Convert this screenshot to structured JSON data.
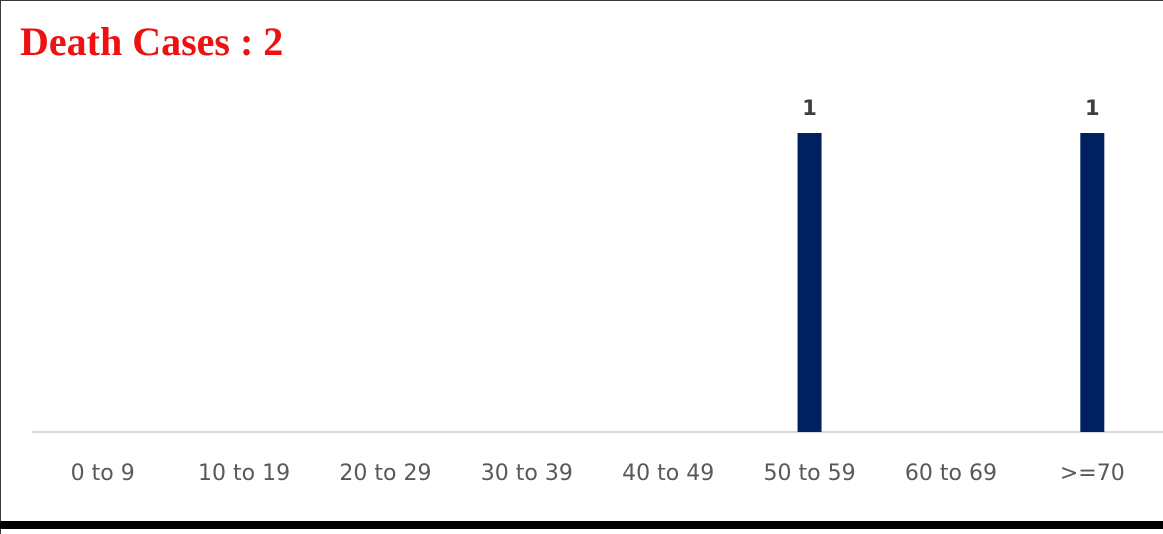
{
  "chart_data": {
    "type": "bar",
    "title": "Death Cases : 2",
    "categories": [
      "0 to 9",
      "10 to 19",
      "20 to 29",
      "30 to 39",
      "40 to 49",
      "50 to 59",
      "60 to 69",
      ">=70"
    ],
    "values": [
      0,
      0,
      0,
      0,
      0,
      1,
      0,
      1
    ],
    "data_labels": [
      "",
      "",
      "",
      "",
      "",
      "1",
      "",
      "1"
    ],
    "ylim": [
      0,
      1
    ],
    "xlabel": "",
    "ylabel": "",
    "grid": false,
    "legend": "none",
    "colors": {
      "bar": "#002060",
      "title": "#ee1111",
      "axis": "#d9d9d9",
      "tick_text": "#595959",
      "data_label": "#404040"
    }
  }
}
